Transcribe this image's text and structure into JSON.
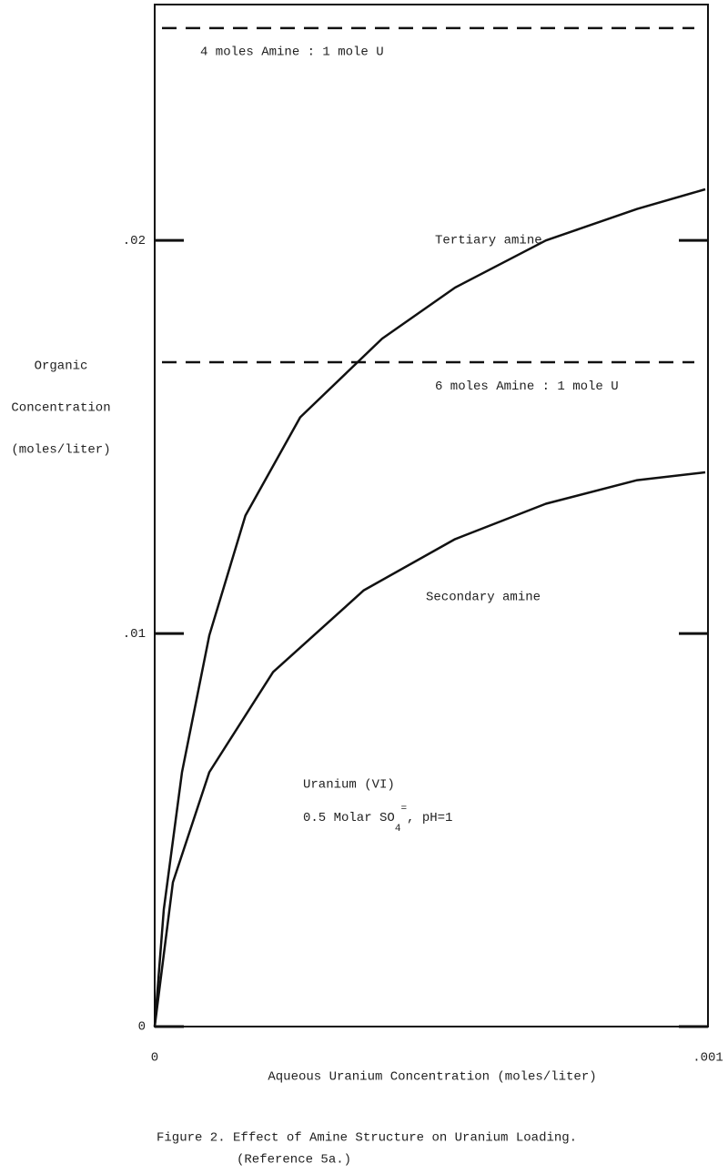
{
  "chart_data": {
    "type": "line",
    "caption": [
      "Figure 2.  Effect of Amine Structure on Uranium Loading.",
      "(Reference 5a.)"
    ],
    "x_label": "Aqueous Uranium Concentration (moles/liter)",
    "y_label": [
      "Organic",
      "Concentration",
      "(moles/liter)"
    ],
    "xlim": [
      0,
      0.001
    ],
    "ylim": [
      0,
      0.026
    ],
    "xticks": [
      0,
      {
        "value": 0.001,
        "label": ".001"
      }
    ],
    "yticks": [
      0,
      {
        "value": 0.01,
        "label": ".01"
      },
      {
        "value": 0.02,
        "label": ".02"
      }
    ],
    "grid": false,
    "series": [
      {
        "name": "Tertiary amine",
        "color": "#111111",
        "x": [
          0,
          1.64e-05,
          4.93e-05,
          9.87e-05,
          0.000164,
          0.000263,
          0.000411,
          0.000543,
          0.000707,
          0.000872,
          0.000995
        ],
        "values": [
          0,
          0.00298,
          0.00647,
          0.00995,
          0.013,
          0.0155,
          0.0175,
          0.0188,
          0.02,
          0.0208,
          0.0213
        ]
      },
      {
        "name": "Secondary amine",
        "color": "#111111",
        "x": [
          0,
          3.29e-05,
          9.87e-05,
          0.000214,
          0.000378,
          0.000543,
          0.000707,
          0.000872,
          0.000995
        ],
        "values": [
          0,
          0.00367,
          0.00647,
          0.00902,
          0.0111,
          0.0124,
          0.0133,
          0.0139,
          0.0141
        ]
      }
    ],
    "reference_lines": [
      {
        "label": "4 moles Amine : 1 mole U",
        "value": 0.0254
      },
      {
        "label": "6 moles Amine : 1 mole U",
        "value": 0.0169
      }
    ],
    "annotation": {
      "line1": "Uranium (VI)",
      "line2": [
        "0.5 Molar SO",
        "4",
        "=",
        ", pH=1"
      ]
    }
  }
}
